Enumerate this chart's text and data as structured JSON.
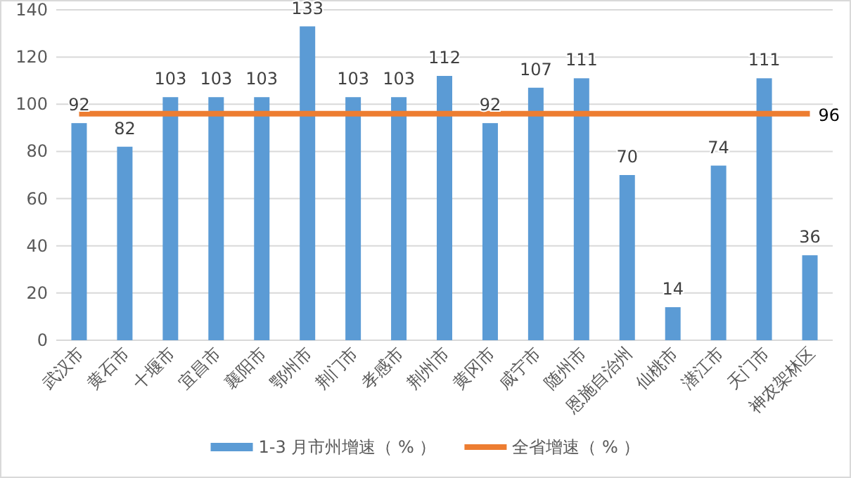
{
  "chart_data": {
    "type": "bar",
    "categories": [
      "武汉市",
      "黄石市",
      "十堰市",
      "宜昌市",
      "襄阳市",
      "鄂州市",
      "荆门市",
      "孝感市",
      "荆州市",
      "黄冈市",
      "咸宁市",
      "随州市",
      "恩施自治州",
      "仙桃市",
      "潜江市",
      "天门市",
      "神农架林区"
    ],
    "series": [
      {
        "name": "1-3 月市州增速（ % ）",
        "color": "#5b9bd5",
        "values": [
          92,
          82,
          103,
          103,
          103,
          133,
          103,
          103,
          112,
          92,
          107,
          111,
          70,
          14,
          74,
          111,
          36
        ],
        "value_labels": [
          "92",
          "82",
          "103",
          "103",
          "103",
          "133",
          "103",
          "103",
          "112",
          "92",
          "107",
          "111",
          "70",
          "14",
          "74",
          "111",
          "36"
        ]
      },
      {
        "name": "全省增速（ % ）",
        "type": "line",
        "color": "#ed7d31",
        "values": [
          96,
          96,
          96,
          96,
          96,
          96,
          96,
          96,
          96,
          96,
          96,
          96,
          96,
          96,
          96,
          96,
          96
        ],
        "value_labels": [
          null,
          null,
          null,
          null,
          null,
          null,
          null,
          null,
          null,
          null,
          null,
          null,
          null,
          null,
          null,
          null,
          "96"
        ]
      }
    ],
    "ylim": [
      0,
      140
    ],
    "yticks": [
      0,
      20,
      40,
      60,
      80,
      100,
      120,
      140
    ],
    "grid": "y",
    "legend": "bottom"
  }
}
